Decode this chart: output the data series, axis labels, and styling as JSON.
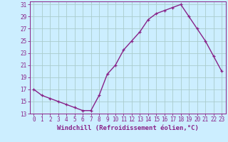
{
  "x": [
    0,
    1,
    2,
    3,
    4,
    5,
    6,
    7,
    8,
    9,
    10,
    11,
    12,
    13,
    14,
    15,
    16,
    17,
    18,
    19,
    20,
    21,
    22,
    23
  ],
  "y": [
    17,
    16,
    15.5,
    15,
    14.5,
    14,
    13.5,
    13.5,
    16,
    19.5,
    21,
    23.5,
    25,
    26.5,
    28.5,
    29.5,
    30,
    30.5,
    31,
    29,
    27,
    25,
    22.5,
    20
  ],
  "line_color": "#882288",
  "marker": "+",
  "xlabel": "Windchill (Refroidissement éolien,°C)",
  "ylabel": "",
  "xlim": [
    -0.5,
    23.5
  ],
  "ylim": [
    13,
    31.5
  ],
  "yticks": [
    13,
    15,
    17,
    19,
    21,
    23,
    25,
    27,
    29,
    31
  ],
  "xticks": [
    0,
    1,
    2,
    3,
    4,
    5,
    6,
    7,
    8,
    9,
    10,
    11,
    12,
    13,
    14,
    15,
    16,
    17,
    18,
    19,
    20,
    21,
    22,
    23
  ],
  "background_color": "#cceeff",
  "grid_color": "#aacccc",
  "tick_fontsize": 5.5,
  "xlabel_fontsize": 6.5,
  "marker_size": 3.5,
  "line_width": 1.0,
  "markeredgewidth": 0.9
}
